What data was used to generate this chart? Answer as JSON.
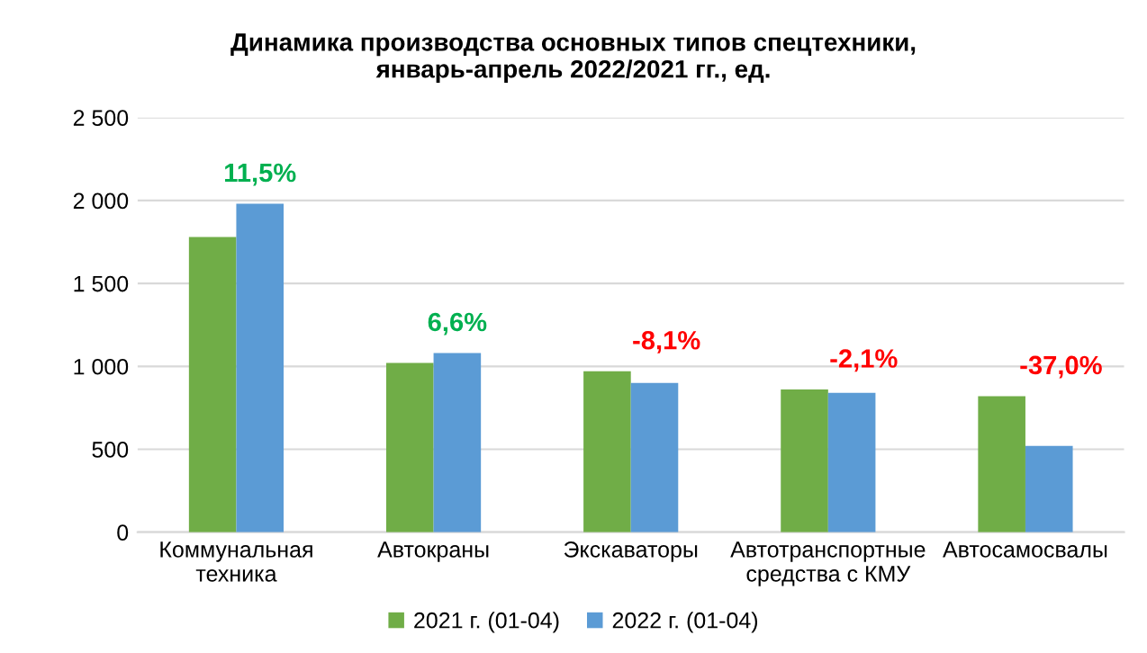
{
  "chart_data": {
    "type": "bar",
    "title": "Динамика производства основных типов спецтехники,\nянварь-апрель 2022/2021 гг., ед.",
    "categories": [
      "Коммунальная\nтехника",
      "Автокраны",
      "Экскаваторы",
      "Автотранспортные\nсредства с КМУ",
      "Автосамосвалы"
    ],
    "series": [
      {
        "name": "2021 г. (01-04)",
        "color": "#70ad47",
        "values": [
          1780,
          1020,
          970,
          860,
          820
        ]
      },
      {
        "name": "2022 г. (01-04)",
        "color": "#5b9bd5",
        "values": [
          1980,
          1080,
          900,
          840,
          520
        ]
      }
    ],
    "annotations": [
      "11,5%",
      "6,6%",
      "-8,1%",
      "-2,1%",
      "-37,0%"
    ],
    "ylim": [
      0,
      2500
    ],
    "yticks": [
      0,
      500,
      {
        "value": 1000,
        "label": "1 000"
      },
      {
        "value": 1500,
        "label": "1 500"
      },
      {
        "value": 2000,
        "label": "2 000"
      },
      {
        "value": 2500,
        "label": "2 500"
      }
    ],
    "grid": "y",
    "legend": "bottom"
  }
}
